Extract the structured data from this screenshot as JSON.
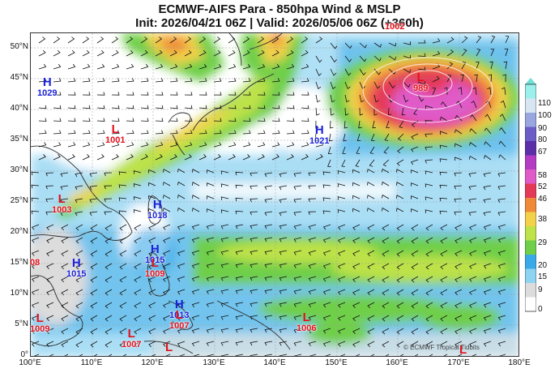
{
  "title_line1": "ECMWF-AIFS Para  - 850hpa Wind & MSLP",
  "title_line2": "Init: 2026/04/21 06Z | Valid: 2026/05/06 06Z (+360h)",
  "lat_labels": [
    "50°N",
    "45°N",
    "40°N",
    "35°N",
    "30°N",
    "25°N",
    "20°N",
    "15°N",
    "10°N",
    "5°N",
    "0°"
  ],
  "lon_labels": [
    "100°E",
    "110°E",
    "120°E",
    "130°E",
    "140°E",
    "150°E",
    "160°E",
    "170°E",
    "180°E"
  ],
  "colorbar": {
    "labels": [
      "110",
      "100",
      "90",
      "80",
      "67",
      "58",
      "52",
      "46",
      "38",
      "29",
      "20",
      "15",
      "9",
      "0"
    ],
    "colors": [
      "#6fe0d6",
      "#9cf0ec",
      "#d8e6f2",
      "#9aa6e0",
      "#6b5dc8",
      "#5a2fa8",
      "#b43cc4",
      "#e05ac8",
      "#e43a58",
      "#ef8a3a",
      "#f3d24a",
      "#bde24a",
      "#6fcf48",
      "#3aa9e8",
      "#8dd3f2",
      "#dcdcdc",
      "#ffffff"
    ]
  },
  "pressure_centers": [
    {
      "type": "H",
      "value": "1029",
      "kind": "hi"
    },
    {
      "type": "L",
      "value": "1001",
      "kind": "lo"
    },
    {
      "type": "L",
      "value": "1003",
      "kind": "lo"
    },
    {
      "type": "H",
      "value": "1018",
      "kind": "hi"
    },
    {
      "type": "H",
      "value": "1015",
      "kind": "hi"
    },
    {
      "type": "L",
      "value": "1009",
      "kind": "lo"
    },
    {
      "type": "H",
      "value": "1015",
      "kind": "hi"
    },
    {
      "type": "",
      "value": "08",
      "kind": "lo"
    },
    {
      "type": "H",
      "value": "1013",
      "kind": "hi"
    },
    {
      "type": "L",
      "value": "1007",
      "kind": "lo"
    },
    {
      "type": "L",
      "value": "1009",
      "kind": "lo"
    },
    {
      "type": "L",
      "value": "1007",
      "kind": "lo"
    },
    {
      "type": "L",
      "value": "",
      "kind": "lo"
    },
    {
      "type": "H",
      "value": "1021",
      "kind": "hi"
    },
    {
      "type": "L",
      "value": "1006",
      "kind": "lo"
    },
    {
      "type": "L",
      "value": "989",
      "kind": "lo"
    },
    {
      "type": "",
      "value": "1002",
      "kind": "lo"
    },
    {
      "type": "L",
      "value": "",
      "kind": "lo"
    }
  ],
  "credit": "© ECMWF Tropical Tidbits"
}
